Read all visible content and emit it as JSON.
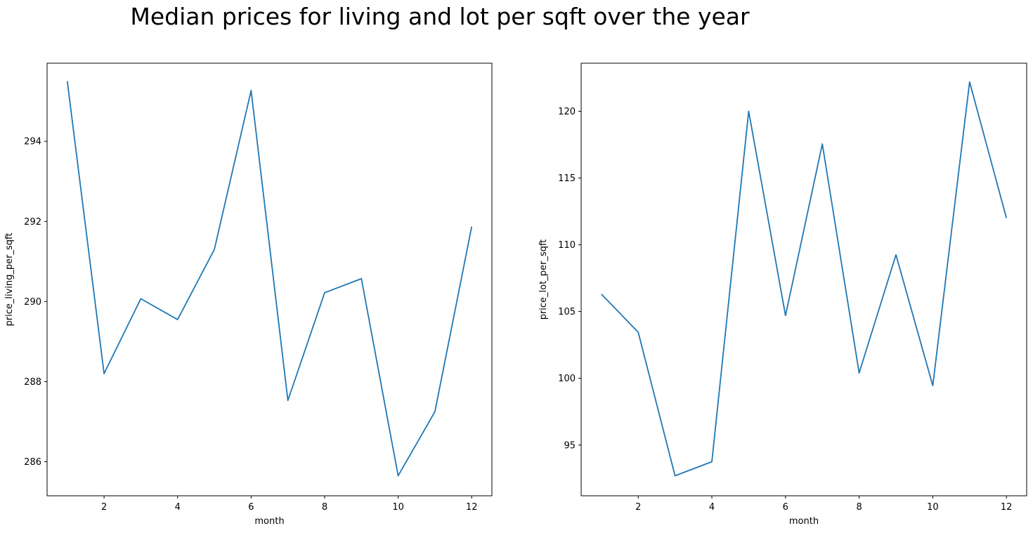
{
  "figure": {
    "title": "Median prices for living and lot per sqft over the year"
  },
  "chart_data": [
    {
      "type": "line",
      "xlabel": "month",
      "ylabel": "price_living_per_sqft",
      "xlim": [
        0.45,
        12.55
      ],
      "ylim": [
        285.15,
        295.95
      ],
      "xticks": [
        2,
        4,
        6,
        8,
        10,
        12
      ],
      "yticks": [
        286,
        288,
        290,
        292,
        294
      ],
      "grid": false,
      "legend": "none",
      "series": [
        {
          "color": "#1f77b4",
          "x": [
            1,
            2,
            3,
            4,
            5,
            6,
            7,
            8,
            9,
            10,
            11,
            12
          ],
          "y": [
            295.5,
            288.2,
            290.07,
            289.55,
            291.3,
            295.27,
            287.53,
            290.22,
            290.57,
            285.65,
            287.25,
            291.87
          ]
        }
      ]
    },
    {
      "type": "line",
      "xlabel": "month",
      "ylabel": "price_lot_per_sqft",
      "xlim": [
        0.45,
        12.55
      ],
      "ylim": [
        91.2,
        123.6
      ],
      "xticks": [
        2,
        4,
        6,
        8,
        10,
        12
      ],
      "yticks": [
        95,
        100,
        105,
        110,
        115,
        120
      ],
      "grid": false,
      "legend": "none",
      "series": [
        {
          "color": "#1f77b4",
          "x": [
            1,
            2,
            3,
            4,
            5,
            6,
            7,
            8,
            9,
            10,
            11,
            12
          ],
          "y": [
            106.3,
            103.45,
            92.7,
            93.75,
            120.0,
            104.7,
            117.55,
            100.4,
            109.25,
            99.45,
            122.2,
            112.0
          ]
        }
      ]
    }
  ]
}
